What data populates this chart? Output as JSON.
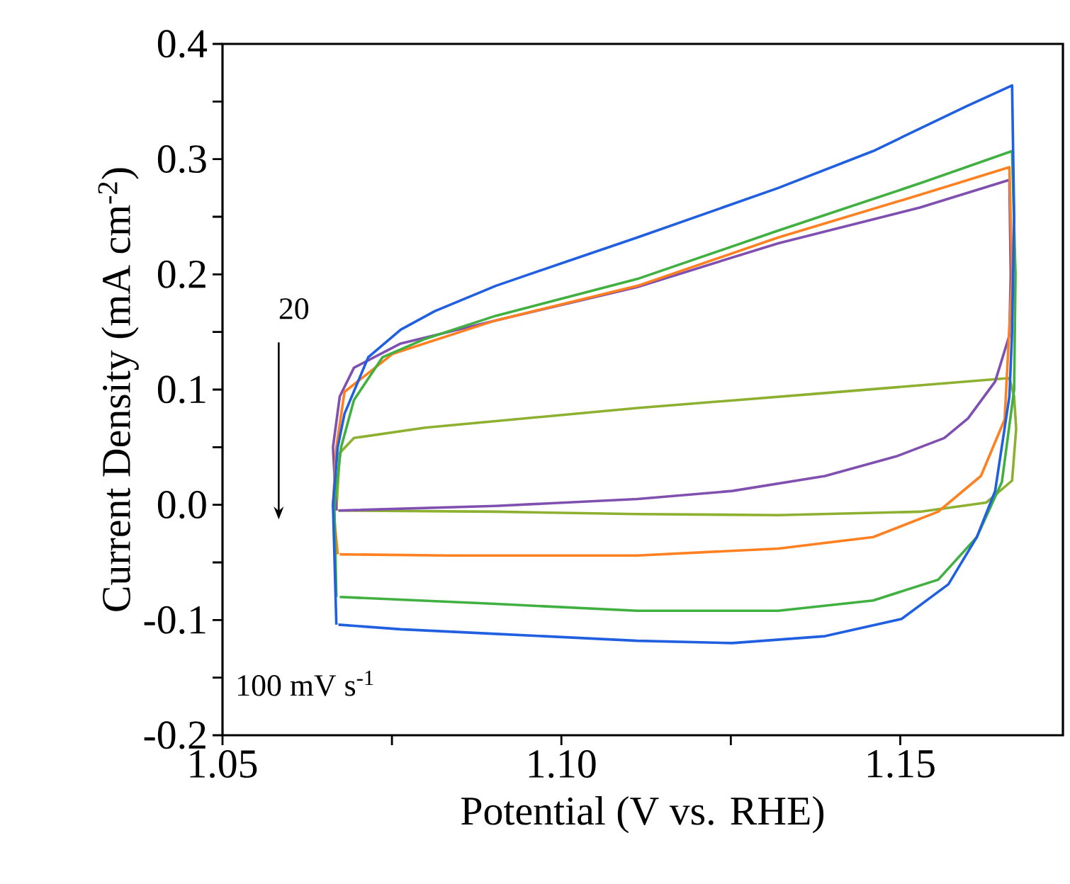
{
  "chart_data": {
    "type": "line",
    "xlabel": "Potential (V vs. RHE)",
    "ylabel": "Current Density (mA cm$^{-2}$)",
    "xlim": [
      1.05,
      1.174
    ],
    "ylim": [
      -0.2,
      0.4
    ],
    "xticks": [
      1.05,
      {
        "value": 1.075,
        "label": null
      },
      {
        "value": 1.1,
        "label": "1.10"
      },
      {
        "value": 1.125,
        "label": null
      },
      1.15
    ],
    "yticks": [
      -0.2,
      {
        "value": -0.15,
        "label": null
      },
      -0.1,
      {
        "value": -0.05,
        "label": null
      },
      {
        "value": 0,
        "label": "0.0"
      },
      {
        "value": 0.05,
        "label": null
      },
      0.1,
      {
        "value": 0.15,
        "label": null
      },
      0.2,
      {
        "value": 0.25,
        "label": null
      },
      0.3,
      {
        "value": 0.35,
        "label": null
      },
      0.4
    ],
    "grid": false,
    "legend": false,
    "marker": "none",
    "line_style": "solid",
    "annotations": [
      "20",
      "100 mV s$^{-1}$"
    ],
    "series": [
      {
        "color": "#8db030",
        "x": [
          1.0668,
          1.0673,
          1.0694,
          1.0799,
          1.1112,
          1.1389,
          1.1661,
          1.1668,
          1.1671,
          1.1665,
          1.1627,
          1.1529,
          1.132,
          1.1112,
          1.0903,
          1.0671
        ],
        "values": [
          -0.005,
          0.045,
          0.058,
          0.067,
          0.084,
          0.097,
          0.11,
          0.094,
          0.066,
          0.021,
          0.002,
          -0.006,
          -0.009,
          -0.008,
          -0.006,
          -0.005
        ]
      },
      {
        "color": "#8050b0",
        "x": [
          1.0668,
          1.0663,
          1.0673,
          1.0694,
          1.0763,
          1.0903,
          1.1112,
          1.132,
          1.1529,
          1.1661,
          1.1663,
          1.1661,
          1.164,
          1.16,
          1.1565,
          1.1494,
          1.1389,
          1.1252,
          1.1112,
          1.0903,
          1.0671
        ],
        "values": [
          -0.005,
          0.05,
          0.094,
          0.119,
          0.14,
          0.16,
          0.189,
          0.227,
          0.258,
          0.282,
          0.2,
          0.147,
          0.107,
          0.075,
          0.058,
          0.042,
          0.025,
          0.012,
          0.005,
          -0.001,
          -0.005
        ]
      },
      {
        "color": "#ff8020",
        "x": [
          1.067,
          1.0663,
          1.0668,
          1.068,
          1.0751,
          1.0903,
          1.1112,
          1.132,
          1.1529,
          1.1661,
          1.1665,
          1.1654,
          1.1619,
          1.1556,
          1.146,
          1.132,
          1.1112,
          1.0834,
          1.0673
        ],
        "values": [
          -0.043,
          0.0,
          0.05,
          0.098,
          0.131,
          0.16,
          0.19,
          0.232,
          0.269,
          0.293,
          0.2,
          0.074,
          0.025,
          -0.006,
          -0.028,
          -0.038,
          -0.044,
          -0.044,
          -0.043
        ]
      },
      {
        "color": "#40b040",
        "x": [
          1.0668,
          1.0665,
          1.0675,
          1.0694,
          1.0736,
          1.0799,
          1.0903,
          1.1112,
          1.132,
          1.1529,
          1.1665,
          1.167,
          1.1668,
          1.165,
          1.1613,
          1.1556,
          1.146,
          1.132,
          1.1112,
          1.0903,
          1.0673
        ],
        "values": [
          -0.08,
          0.0,
          0.05,
          0.091,
          0.128,
          0.144,
          0.164,
          0.196,
          0.238,
          0.279,
          0.307,
          0.2,
          0.1,
          0.02,
          -0.028,
          -0.065,
          -0.083,
          -0.092,
          -0.092,
          -0.086,
          -0.08
        ]
      },
      {
        "color": "#2060e0",
        "x": [
          1.0668,
          1.0663,
          1.067,
          1.068,
          1.0715,
          1.0763,
          1.0813,
          1.0903,
          1.1007,
          1.1112,
          1.132,
          1.146,
          1.1598,
          1.1665,
          1.1668,
          1.1665,
          1.1661,
          1.164,
          1.1613,
          1.1571,
          1.1502,
          1.1389,
          1.1252,
          1.1112,
          1.0903,
          1.0763,
          1.0671
        ],
        "values": [
          -0.104,
          0.0,
          0.05,
          0.079,
          0.128,
          0.152,
          0.168,
          0.19,
          0.211,
          0.232,
          0.275,
          0.307,
          0.346,
          0.364,
          0.25,
          0.15,
          0.094,
          0.012,
          -0.028,
          -0.069,
          -0.099,
          -0.114,
          -0.12,
          -0.118,
          -0.112,
          -0.108,
          -0.104
        ]
      }
    ]
  }
}
